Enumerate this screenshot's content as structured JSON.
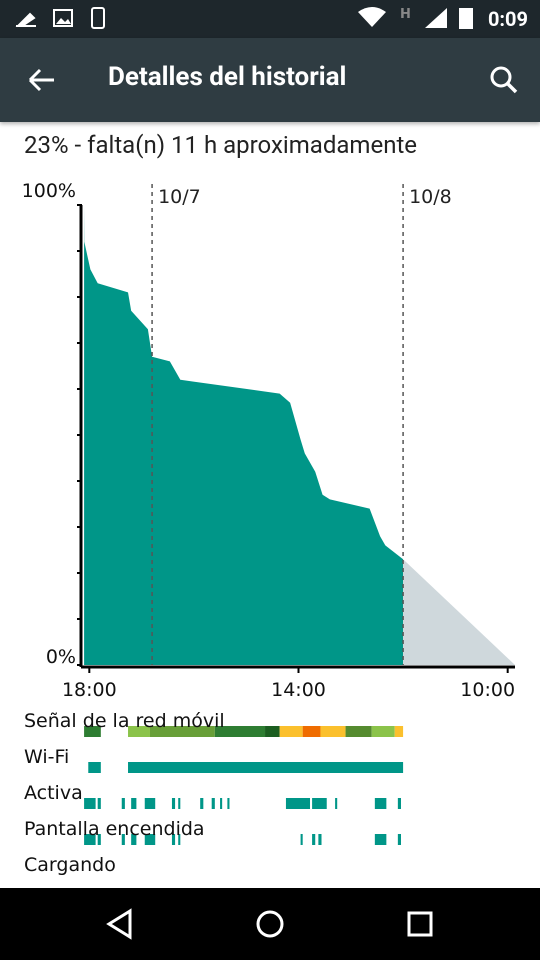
{
  "status_bar": {
    "time": "0:09"
  },
  "app_bar": {
    "title": "Detalles del historial"
  },
  "summary": "23% - falta(n) 11 h aproximadamente",
  "chart_data": {
    "type": "area",
    "xlim": [
      -0.7,
      40.7
    ],
    "ylim": [
      0,
      100
    ],
    "xticks": [
      {
        "value": 0,
        "label": "18:00"
      },
      {
        "value": 20,
        "label": "14:00"
      },
      {
        "value": 40,
        "label": "10:00"
      }
    ],
    "yticks": [
      {
        "value": 0,
        "label": "0%"
      },
      {
        "value": 10,
        "label": null
      },
      {
        "value": 20,
        "label": null
      },
      {
        "value": 30,
        "label": null
      },
      {
        "value": 40,
        "label": null
      },
      {
        "value": 50,
        "label": null
      },
      {
        "value": 60,
        "label": null
      },
      {
        "value": 70,
        "label": null
      },
      {
        "value": 80,
        "label": null
      },
      {
        "value": 90,
        "label": null
      },
      {
        "value": 100,
        "label": "100%"
      }
    ],
    "day_markers": [
      {
        "value": 6,
        "label": "10/7"
      },
      {
        "value": 30,
        "label": "10/8"
      }
    ],
    "series": [
      {
        "color": "#009688",
        "x": [
          -0.5,
          -0.48,
          0.1,
          0.8,
          3.7,
          4.0,
          5.6,
          6.0,
          7.7,
          8.7,
          18.2,
          19.2,
          20.2,
          20.6,
          21.6,
          22.3,
          23.0,
          26.8,
          27.8,
          28.3,
          30.0
        ],
        "values": [
          100,
          92,
          86,
          83,
          81,
          77,
          73,
          67,
          66,
          62,
          59,
          57,
          49,
          46,
          42,
          37,
          36,
          34,
          28,
          26,
          23
        ]
      },
      {
        "color": "#cfd8dc",
        "x": [
          30.0,
          40.7
        ],
        "values": [
          23,
          0
        ]
      }
    ],
    "tracks": [
      {
        "label": "Señal de la red móvil",
        "segments": [
          {
            "start": -0.5,
            "end": 1.1,
            "color": "#2e7d32"
          },
          {
            "start": 3.7,
            "end": 5.8,
            "color": "#8bc34a"
          },
          {
            "start": 5.8,
            "end": 12.0,
            "color": "#689f38"
          },
          {
            "start": 12.0,
            "end": 16.8,
            "color": "#2e7d32"
          },
          {
            "start": 16.8,
            "end": 18.2,
            "color": "#1b5e20"
          },
          {
            "start": 18.2,
            "end": 20.4,
            "color": "#fbc02d"
          },
          {
            "start": 20.4,
            "end": 22.1,
            "color": "#ef6c00"
          },
          {
            "start": 22.1,
            "end": 24.5,
            "color": "#fbc02d"
          },
          {
            "start": 24.5,
            "end": 27.0,
            "color": "#558b2f"
          },
          {
            "start": 27.0,
            "end": 29.2,
            "color": "#8bc34a"
          },
          {
            "start": 29.2,
            "end": 30.0,
            "color": "#fbc02d"
          }
        ]
      },
      {
        "label": "Wi-Fi",
        "segments": [
          {
            "start": -0.1,
            "end": 1.1,
            "color": "#009688"
          },
          {
            "start": 3.7,
            "end": 30.0,
            "color": "#009688"
          }
        ]
      },
      {
        "label": "Activa",
        "segments": [
          {
            "start": -0.5,
            "end": 0.6,
            "color": "#009688"
          },
          {
            "start": 0.8,
            "end": 1.1,
            "color": "#009688"
          },
          {
            "start": 3.1,
            "end": 3.4,
            "color": "#009688"
          },
          {
            "start": 4.0,
            "end": 4.5,
            "color": "#009688"
          },
          {
            "start": 5.3,
            "end": 6.3,
            "color": "#009688"
          },
          {
            "start": 7.9,
            "end": 8.2,
            "color": "#009688"
          },
          {
            "start": 8.5,
            "end": 8.7,
            "color": "#009688"
          },
          {
            "start": 10.6,
            "end": 10.9,
            "color": "#009688"
          },
          {
            "start": 11.7,
            "end": 12.0,
            "color": "#009688"
          },
          {
            "start": 12.5,
            "end": 12.7,
            "color": "#009688"
          },
          {
            "start": 13.2,
            "end": 13.4,
            "color": "#009688"
          },
          {
            "start": 18.8,
            "end": 21.1,
            "color": "#009688"
          },
          {
            "start": 21.3,
            "end": 22.7,
            "color": "#009688"
          },
          {
            "start": 23.5,
            "end": 23.7,
            "color": "#009688"
          },
          {
            "start": 27.3,
            "end": 28.4,
            "color": "#009688"
          },
          {
            "start": 29.5,
            "end": 29.8,
            "color": "#009688"
          }
        ]
      },
      {
        "label": "Pantalla encendida",
        "segments": [
          {
            "start": -0.5,
            "end": 0.6,
            "color": "#009688"
          },
          {
            "start": 0.8,
            "end": 1.1,
            "color": "#009688"
          },
          {
            "start": 3.1,
            "end": 3.4,
            "color": "#009688"
          },
          {
            "start": 4.0,
            "end": 4.5,
            "color": "#009688"
          },
          {
            "start": 5.3,
            "end": 6.3,
            "color": "#009688"
          },
          {
            "start": 7.9,
            "end": 8.2,
            "color": "#009688"
          },
          {
            "start": 8.5,
            "end": 8.7,
            "color": "#009688"
          },
          {
            "start": 20.2,
            "end": 20.4,
            "color": "#009688"
          },
          {
            "start": 21.3,
            "end": 21.6,
            "color": "#009688"
          },
          {
            "start": 21.9,
            "end": 22.2,
            "color": "#009688"
          },
          {
            "start": 27.3,
            "end": 28.4,
            "color": "#009688"
          },
          {
            "start": 29.5,
            "end": 29.8,
            "color": "#009688"
          }
        ]
      },
      {
        "label": "Cargando",
        "segments": []
      }
    ]
  }
}
